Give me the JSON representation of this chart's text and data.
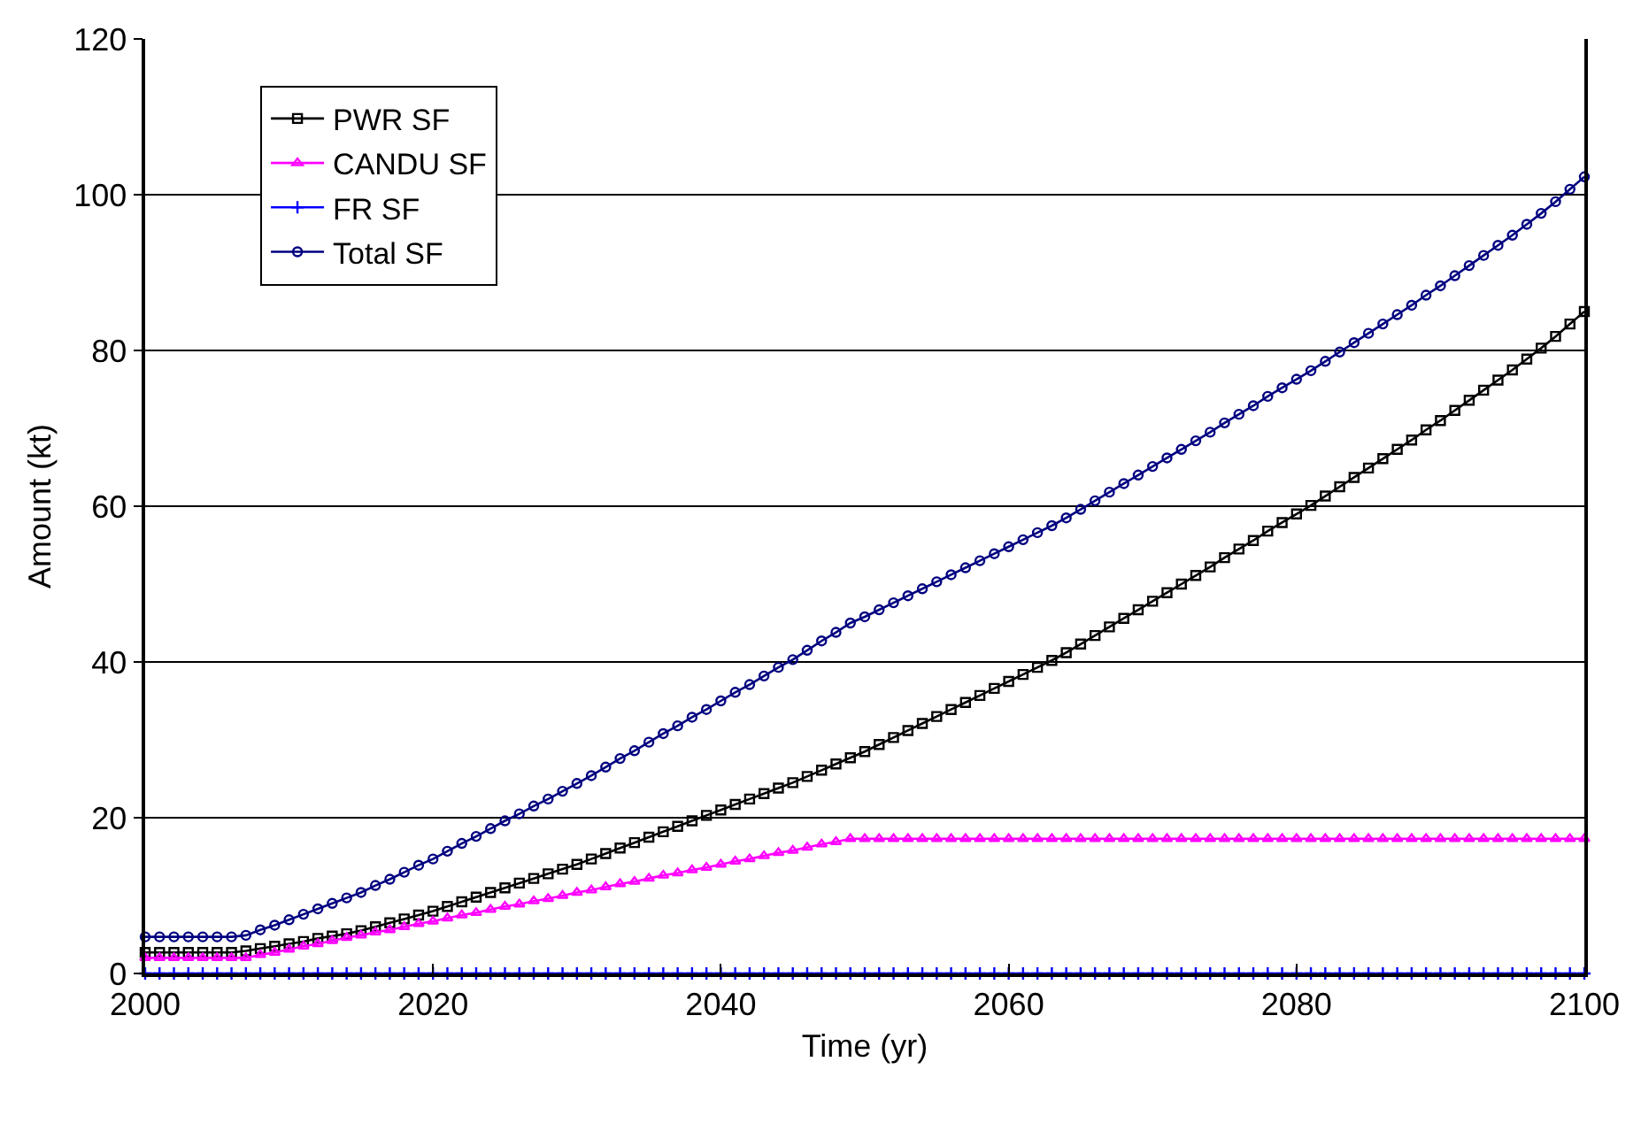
{
  "chart_data": {
    "type": "line",
    "xlabel": "Time (yr)",
    "ylabel": "Amount (kt)",
    "x": [
      2000,
      2001,
      2002,
      2003,
      2004,
      2005,
      2006,
      2007,
      2008,
      2009,
      2010,
      2011,
      2012,
      2013,
      2014,
      2015,
      2016,
      2017,
      2018,
      2019,
      2020,
      2021,
      2022,
      2023,
      2024,
      2025,
      2026,
      2027,
      2028,
      2029,
      2030,
      2031,
      2032,
      2033,
      2034,
      2035,
      2036,
      2037,
      2038,
      2039,
      2040,
      2041,
      2042,
      2043,
      2044,
      2045,
      2046,
      2047,
      2048,
      2049,
      2050,
      2051,
      2052,
      2053,
      2054,
      2055,
      2056,
      2057,
      2058,
      2059,
      2060,
      2061,
      2062,
      2063,
      2064,
      2065,
      2066,
      2067,
      2068,
      2069,
      2070,
      2071,
      2072,
      2073,
      2074,
      2075,
      2076,
      2077,
      2078,
      2079,
      2080,
      2081,
      2082,
      2083,
      2084,
      2085,
      2086,
      2087,
      2088,
      2089,
      2090,
      2091,
      2092,
      2093,
      2094,
      2095,
      2096,
      2097,
      2098,
      2099,
      2100
    ],
    "xlim": [
      2000,
      2100
    ],
    "xticks": [
      2000,
      2020,
      2040,
      2060,
      2080,
      2100
    ],
    "ylim": [
      0,
      120
    ],
    "yticks": [
      0,
      20,
      40,
      60,
      80,
      100,
      120
    ],
    "grid": "y",
    "legend": "top left",
    "line_style": "solid",
    "series": [
      {
        "name": "PWR SF",
        "color": "#000000",
        "marker": "square",
        "values": [
          2.7,
          2.7,
          2.7,
          2.7,
          2.7,
          2.7,
          2.7,
          2.9,
          3.2,
          3.5,
          3.8,
          4.1,
          4.5,
          4.8,
          5.1,
          5.5,
          6.0,
          6.5,
          7.0,
          7.5,
          8.0,
          8.6,
          9.2,
          9.8,
          10.4,
          11.0,
          11.6,
          12.2,
          12.8,
          13.4,
          14.0,
          14.7,
          15.4,
          16.1,
          16.8,
          17.5,
          18.2,
          18.9,
          19.6,
          20.3,
          21.0,
          21.7,
          22.4,
          23.1,
          23.8,
          24.5,
          25.3,
          26.1,
          26.9,
          27.7,
          28.5,
          29.4,
          30.3,
          31.2,
          32.1,
          33.0,
          33.9,
          34.8,
          35.7,
          36.6,
          37.5,
          38.4,
          39.3,
          40.2,
          41.2,
          42.3,
          43.4,
          44.5,
          45.6,
          46.7,
          47.8,
          48.9,
          50.0,
          51.1,
          52.2,
          53.4,
          54.5,
          55.6,
          56.8,
          57.9,
          59.0,
          60.1,
          61.3,
          62.5,
          63.7,
          64.9,
          66.1,
          67.3,
          68.5,
          69.8,
          71.0,
          72.3,
          73.6,
          74.9,
          76.2,
          77.5,
          78.9,
          80.3,
          81.8,
          83.4,
          85.0
        ]
      },
      {
        "name": "CANDU SF",
        "color": "#ff00ff",
        "marker": "triangle",
        "values": [
          2.0,
          2.0,
          2.0,
          2.0,
          2.0,
          2.0,
          2.0,
          2.0,
          2.4,
          2.7,
          3.1,
          3.5,
          3.8,
          4.2,
          4.6,
          4.9,
          5.3,
          5.6,
          6.0,
          6.4,
          6.7,
          7.1,
          7.5,
          7.8,
          8.2,
          8.6,
          8.9,
          9.3,
          9.6,
          10.0,
          10.4,
          10.7,
          11.1,
          11.5,
          11.8,
          12.2,
          12.6,
          12.9,
          13.3,
          13.6,
          14.0,
          14.4,
          14.7,
          15.1,
          15.5,
          15.8,
          16.2,
          16.6,
          16.9,
          17.3,
          17.3,
          17.3,
          17.3,
          17.3,
          17.3,
          17.3,
          17.3,
          17.3,
          17.3,
          17.3,
          17.3,
          17.3,
          17.3,
          17.3,
          17.3,
          17.3,
          17.3,
          17.3,
          17.3,
          17.3,
          17.3,
          17.3,
          17.3,
          17.3,
          17.3,
          17.3,
          17.3,
          17.3,
          17.3,
          17.3,
          17.3,
          17.3,
          17.3,
          17.3,
          17.3,
          17.3,
          17.3,
          17.3,
          17.3,
          17.3,
          17.3,
          17.3,
          17.3,
          17.3,
          17.3,
          17.3,
          17.3,
          17.3,
          17.3,
          17.3,
          17.3
        ]
      },
      {
        "name": "FR SF",
        "color": "#0000ff",
        "marker": "cross",
        "values": [
          0,
          0,
          0,
          0,
          0,
          0,
          0,
          0,
          0,
          0,
          0,
          0,
          0,
          0,
          0,
          0,
          0,
          0,
          0,
          0,
          0,
          0,
          0,
          0,
          0,
          0,
          0,
          0,
          0,
          0,
          0,
          0,
          0,
          0,
          0,
          0,
          0,
          0,
          0,
          0,
          0,
          0,
          0,
          0,
          0,
          0,
          0,
          0,
          0,
          0,
          0,
          0,
          0,
          0,
          0,
          0,
          0,
          0,
          0,
          0,
          0,
          0,
          0,
          0,
          0,
          0,
          0,
          0,
          0,
          0,
          0,
          0,
          0,
          0,
          0,
          0,
          0,
          0,
          0,
          0,
          0,
          0,
          0,
          0,
          0,
          0,
          0,
          0,
          0,
          0,
          0,
          0,
          0,
          0,
          0,
          0,
          0,
          0,
          0,
          0,
          0
        ]
      },
      {
        "name": "Total SF",
        "color": "#000080",
        "marker": "circle",
        "values": [
          4.7,
          4.7,
          4.7,
          4.7,
          4.7,
          4.7,
          4.7,
          4.9,
          5.6,
          6.2,
          6.9,
          7.6,
          8.3,
          9.0,
          9.7,
          10.4,
          11.3,
          12.1,
          13.0,
          13.9,
          14.7,
          15.7,
          16.7,
          17.6,
          18.6,
          19.6,
          20.5,
          21.5,
          22.4,
          23.4,
          24.4,
          25.4,
          26.5,
          27.6,
          28.6,
          29.7,
          30.8,
          31.8,
          32.9,
          33.9,
          35.0,
          36.1,
          37.1,
          38.2,
          39.3,
          40.3,
          41.5,
          42.7,
          43.8,
          45.0,
          45.8,
          46.7,
          47.6,
          48.5,
          49.4,
          50.3,
          51.2,
          52.1,
          53.0,
          53.9,
          54.8,
          55.7,
          56.6,
          57.5,
          58.5,
          59.6,
          60.7,
          61.8,
          62.9,
          64.0,
          65.1,
          66.2,
          67.3,
          68.4,
          69.5,
          70.7,
          71.8,
          72.9,
          74.1,
          75.2,
          76.3,
          77.4,
          78.6,
          79.8,
          81.0,
          82.2,
          83.4,
          84.6,
          85.8,
          87.1,
          88.3,
          89.6,
          90.9,
          92.2,
          93.5,
          94.8,
          96.2,
          97.6,
          99.1,
          100.7,
          102.3
        ]
      }
    ]
  }
}
